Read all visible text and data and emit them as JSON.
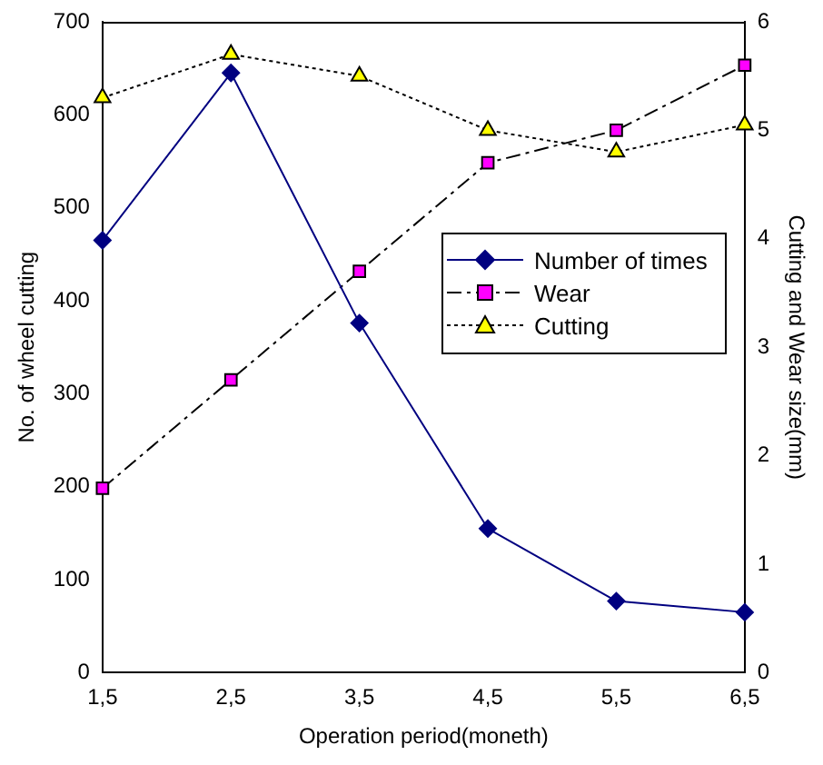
{
  "chart_data": {
    "type": "line",
    "xlabel": "Operation period(moneth)",
    "ylabel": "No. of wheel cutting",
    "y2label": "Cutting and Wear size(mm)",
    "categories": [
      "1,5",
      "2,5",
      "3,5",
      "4,5",
      "5,5",
      "6,5"
    ],
    "ylim": [
      0,
      700
    ],
    "yticks": [
      0,
      100,
      200,
      300,
      400,
      500,
      600,
      700
    ],
    "y2lim": [
      0,
      6
    ],
    "y2ticks": [
      0,
      1,
      2,
      3,
      4,
      5,
      6
    ],
    "grid": false,
    "legend": "right",
    "series": [
      {
        "name": "Number of times",
        "color": "#000080",
        "marker": "diamond",
        "line_style": "solid",
        "values": [
          465,
          645,
          376,
          155,
          77,
          65
        ]
      },
      {
        "name": "Wear",
        "color": "#ff00ff",
        "marker": "square",
        "line_style": "dashed",
        "axis": "y2",
        "values": [
          1.7,
          2.7,
          3.7,
          4.7,
          5.0,
          5.6
        ]
      },
      {
        "name": "Cutting",
        "color": "#ffff00",
        "marker": "triangle",
        "line_style": "dotted",
        "axis": "y2",
        "values": [
          5.3,
          5.7,
          5.5,
          5.0,
          4.8,
          5.05
        ]
      }
    ]
  }
}
